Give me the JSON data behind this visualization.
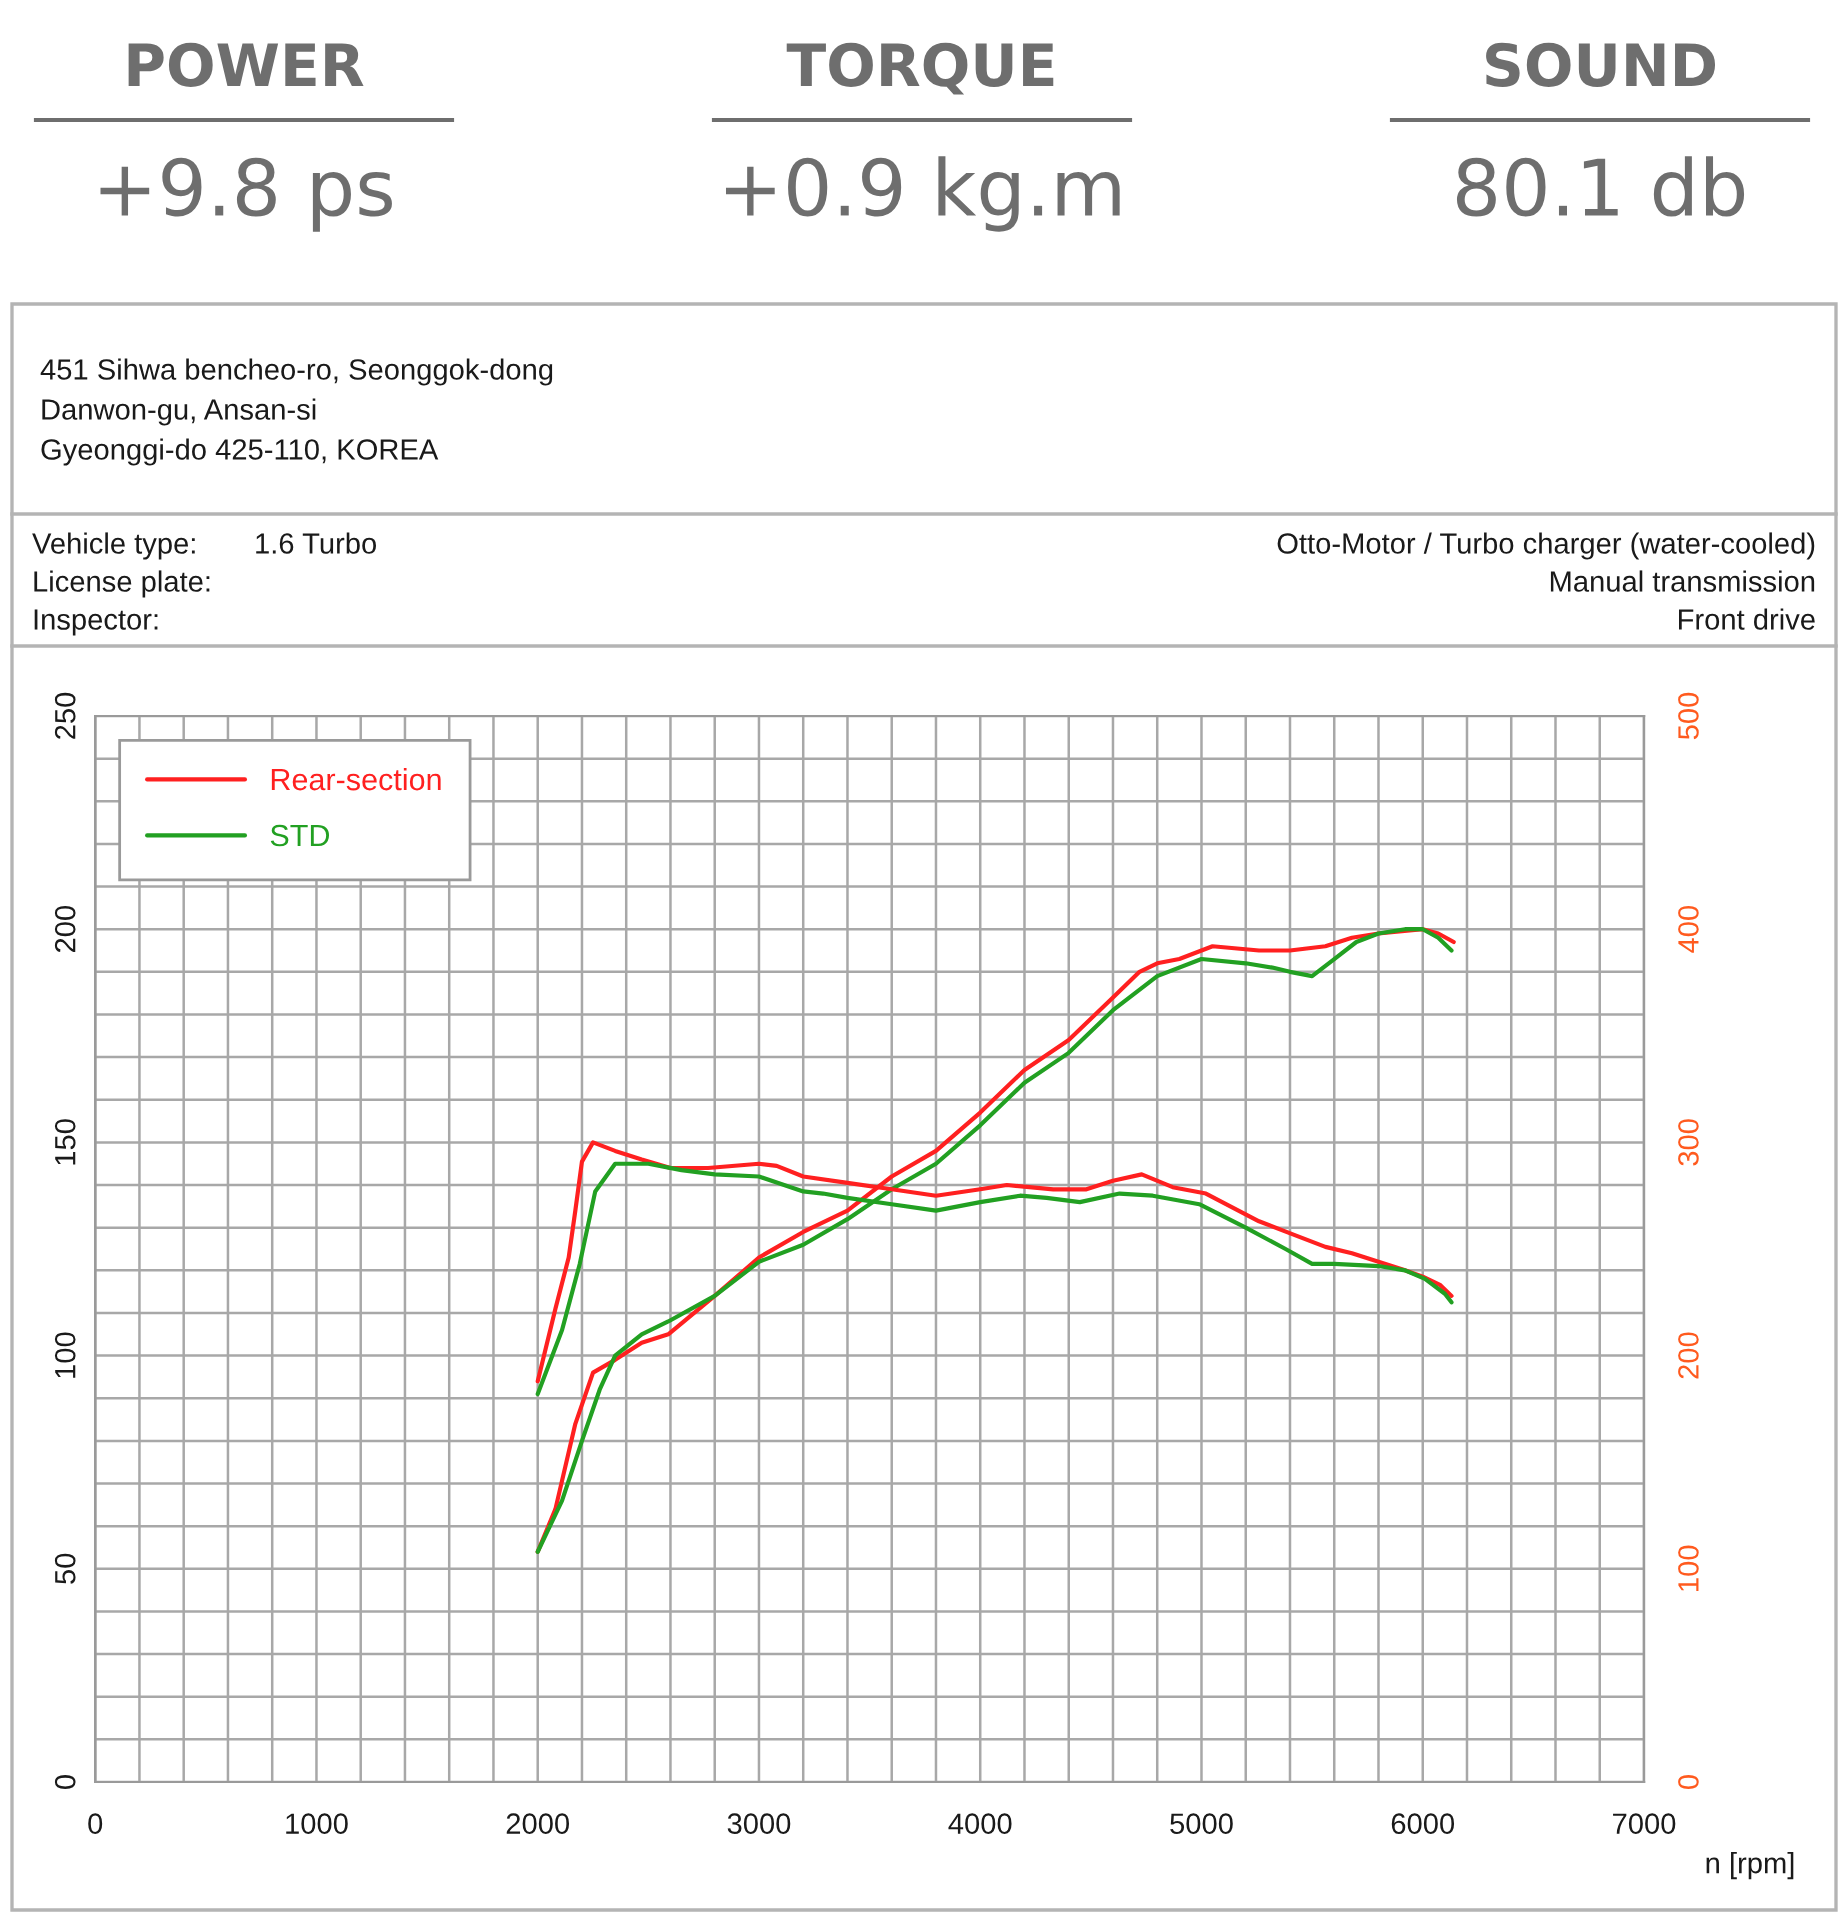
{
  "chart_data": [
    {
      "type": "other",
      "annotations": [
        "POWER",
        "+9.8 ps",
        "TORQUE",
        "+0.9 kg.m",
        "SOUND",
        "80.1 db"
      ]
    },
    {
      "type": "line",
      "xlabel": "n [rpm]",
      "annotations": [
        "451 Sihwa bencheo-ro, Seonggok-dong",
        "Danwon-gu, Ansan-si",
        "Gyeonggi-do 425-110, KOREA",
        "Vehicle type:",
        "1.6 Turbo",
        "License plate:",
        "Inspector:",
        "Otto-Motor / Turbo charger (water-cooled)",
        "Manual transmission",
        "Front drive"
      ],
      "xlim": [
        0,
        7000
      ],
      "ylim": [
        0,
        250
      ],
      "y2lim": [
        0,
        500
      ],
      "xticks": [
        0,
        {
          "value": 200,
          "label": null
        },
        {
          "value": 400,
          "label": null
        },
        {
          "value": 600,
          "label": null
        },
        {
          "value": 800,
          "label": null
        },
        1000,
        {
          "value": 1200,
          "label": null
        },
        {
          "value": 1400,
          "label": null
        },
        {
          "value": 1600,
          "label": null
        },
        {
          "value": 1800,
          "label": null
        },
        2000,
        {
          "value": 2200,
          "label": null
        },
        {
          "value": 2400,
          "label": null
        },
        {
          "value": 2600,
          "label": null
        },
        {
          "value": 2800,
          "label": null
        },
        3000,
        {
          "value": 3200,
          "label": null
        },
        {
          "value": 3400,
          "label": null
        },
        {
          "value": 3600,
          "label": null
        },
        {
          "value": 3800,
          "label": null
        },
        4000,
        {
          "value": 4200,
          "label": null
        },
        {
          "value": 4400,
          "label": null
        },
        {
          "value": 4600,
          "label": null
        },
        {
          "value": 4800,
          "label": null
        },
        5000,
        {
          "value": 5200,
          "label": null
        },
        {
          "value": 5400,
          "label": null
        },
        {
          "value": 5600,
          "label": null
        },
        {
          "value": 5800,
          "label": null
        },
        6000,
        {
          "value": 6200,
          "label": null
        },
        {
          "value": 6400,
          "label": null
        },
        {
          "value": 6600,
          "label": null
        },
        {
          "value": 6800,
          "label": null
        },
        7000
      ],
      "yticks": [
        0,
        {
          "value": 10,
          "label": null
        },
        {
          "value": 20,
          "label": null
        },
        {
          "value": 30,
          "label": null
        },
        {
          "value": 40,
          "label": null
        },
        50,
        {
          "value": 60,
          "label": null
        },
        {
          "value": 70,
          "label": null
        },
        {
          "value": 80,
          "label": null
        },
        {
          "value": 90,
          "label": null
        },
        100,
        {
          "value": 110,
          "label": null
        },
        {
          "value": 120,
          "label": null
        },
        {
          "value": 130,
          "label": null
        },
        {
          "value": 140,
          "label": null
        },
        150,
        {
          "value": 160,
          "label": null
        },
        {
          "value": 170,
          "label": null
        },
        {
          "value": 180,
          "label": null
        },
        {
          "value": 190,
          "label": null
        },
        200,
        {
          "value": 210,
          "label": null
        },
        {
          "value": 220,
          "label": null
        },
        {
          "value": 230,
          "label": null
        },
        {
          "value": 240,
          "label": null
        },
        250
      ],
      "y2ticks": [
        0,
        100,
        200,
        300,
        400,
        500
      ],
      "grid": true,
      "legend": "top left",
      "series": [
        {
          "name": "Rear-section",
          "color": "#ff2020",
          "x": [
            2000,
            2080,
            2170,
            2250,
            2350,
            2470,
            2590,
            2800,
            3000,
            3200,
            3400,
            3600,
            3800,
            4000,
            4200,
            4400,
            4600,
            4720,
            4800,
            4900,
            5050,
            5260,
            5400,
            5560,
            5680,
            5800,
            6000,
            6070,
            6140
          ],
          "values": [
            54,
            64,
            84,
            96,
            99,
            103,
            105,
            114,
            123,
            129,
            134,
            142,
            148,
            157,
            167,
            174,
            184,
            190,
            192,
            193,
            196,
            195,
            195,
            196,
            198,
            199,
            200,
            199,
            197
          ]
        },
        {
          "name": "STD",
          "color": "#22a022",
          "x": [
            2000,
            2110,
            2200,
            2280,
            2350,
            2470,
            2590,
            2800,
            3000,
            3200,
            3400,
            3600,
            3800,
            4000,
            4200,
            4400,
            4600,
            4800,
            5000,
            5200,
            5320,
            5400,
            5500,
            5600,
            5700,
            5800,
            5920,
            6000,
            6070,
            6130
          ],
          "values": [
            54,
            66,
            80,
            92,
            100,
            105,
            108,
            114,
            122,
            126,
            132,
            139,
            145,
            154,
            164,
            171,
            181,
            189,
            193,
            192,
            191,
            190,
            189,
            193,
            197,
            199,
            200,
            200,
            198,
            195
          ]
        },
        {
          "color": "#ff2020",
          "axis": "y2",
          "x": [
            2000,
            2080,
            2140,
            2170,
            2200,
            2250,
            2350,
            2470,
            2600,
            2770,
            3000,
            3080,
            3200,
            3400,
            3600,
            3800,
            4000,
            4120,
            4330,
            4480,
            4600,
            4730,
            4870,
            5020,
            5260,
            5410,
            5560,
            5680,
            5800,
            5920,
            6000,
            6080,
            6130
          ],
          "values": [
            188,
            222,
            246,
            268,
            291,
            300,
            296,
            292,
            288,
            288,
            290,
            289,
            284,
            281,
            278,
            275,
            278,
            280,
            278,
            278,
            282,
            285,
            279,
            276,
            263,
            257,
            251,
            248,
            244,
            240,
            237,
            233,
            228
          ]
        },
        {
          "color": "#22a022",
          "axis": "y2",
          "x": [
            2000,
            2110,
            2190,
            2260,
            2350,
            2500,
            2650,
            2800,
            3000,
            3200,
            3290,
            3400,
            3600,
            3800,
            4000,
            4180,
            4300,
            4450,
            4630,
            4780,
            4990,
            5200,
            5380,
            5500,
            5600,
            5800,
            5920,
            6010,
            6100,
            6130
          ],
          "values": [
            182,
            212,
            243,
            277,
            290,
            290,
            287,
            285,
            284,
            277,
            276,
            274,
            271,
            268,
            272,
            275,
            274,
            272,
            276,
            275,
            271,
            260,
            250,
            243,
            243,
            242,
            240,
            236,
            229,
            225
          ]
        }
      ]
    }
  ]
}
